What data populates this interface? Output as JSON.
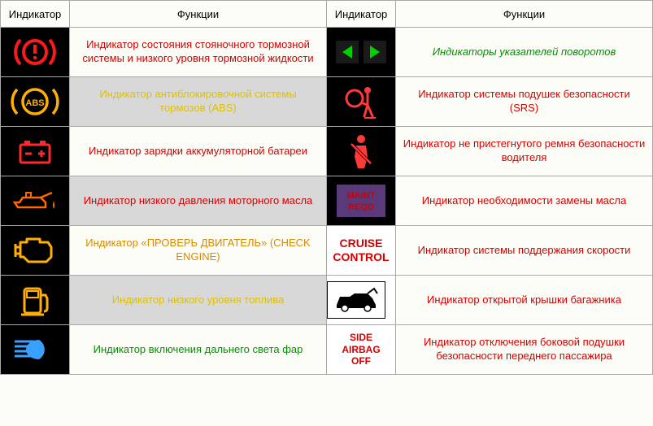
{
  "headers": {
    "indicator": "Индикатор",
    "functions": "Функции"
  },
  "rows": [
    {
      "left_icon": "brake-warning",
      "left_func": "Индикатор состояния стояночного тормозной системы и низкого уровня тормозной жидкости",
      "left_class": "red-text",
      "left_shaded": false,
      "right_icon": "turn-signals",
      "right_func": "Индикаторы указателей поворотов",
      "right_class": "green-text",
      "right_shaded": false
    },
    {
      "left_icon": "abs",
      "left_func": "Индикатор антиблокировочной системы тормозов (ABS)",
      "left_class": "yellow-text",
      "left_shaded": true,
      "right_icon": "airbag",
      "right_func": "Индикатор системы подушек безопасности (SRS)",
      "right_class": "red-text",
      "right_shaded": false
    },
    {
      "left_icon": "battery",
      "left_func": "Индикатор зарядки аккумуляторной батареи",
      "left_class": "red-text",
      "left_shaded": false,
      "right_icon": "seatbelt",
      "right_func": "Индикатор не пристегнутого ремня безопасности водителя",
      "right_class": "red-text",
      "right_shaded": false
    },
    {
      "left_icon": "oil",
      "left_func": "Индикатор низкого давления моторного масла",
      "left_class": "red-text",
      "left_shaded": true,
      "right_icon": "maint-reqd",
      "right_func": "Индикатор необходимости замены масла",
      "right_class": "red-text",
      "right_shaded": false
    },
    {
      "left_icon": "check-engine",
      "left_func": "Индикатор «ПРОВЕРЬ ДВИГАТЕЛЬ» (CHECK ENGINE)",
      "left_class": "orange-text",
      "left_shaded": false,
      "right_icon": "cruise-control",
      "right_func": "Индикатор системы поддержания скорости",
      "right_class": "red-text",
      "right_shaded": false
    },
    {
      "left_icon": "fuel",
      "left_func": "Индикатор низкого уровня топлива",
      "left_class": "yellow-text",
      "left_shaded": true,
      "right_icon": "trunk-open",
      "right_func": "Индикатор открытой крышки багажника",
      "right_class": "red-text",
      "right_shaded": false
    },
    {
      "left_icon": "high-beam",
      "left_func": "Индикатор включения дальнего света фар",
      "left_class": "green-text-plain",
      "left_shaded": false,
      "right_icon": "side-airbag-off",
      "right_func": "Индикатор отключения боковой подушки безопасности переднего пассажира",
      "right_class": "red-text",
      "right_shaded": false
    }
  ],
  "icon_colors": {
    "brake": "#ff1a1a",
    "abs": "#ffb000",
    "battery": "#ff2a2a",
    "oil": "#ff6a00",
    "engine": "#ffb000",
    "fuel": "#ffb000",
    "highbeam": "#3aa0ff",
    "turn": "#00d000",
    "airbag": "#ff3a3a",
    "seatbelt": "#ff3a3a",
    "maint_bg": "#5a3a7a",
    "maint_text": "#d00000"
  },
  "labels": {
    "cruise": "CRUISE CONTROL",
    "side_airbag": "SIDE AIRBAG OFF",
    "maint": "MAINT REQD",
    "abs": "ABS"
  }
}
